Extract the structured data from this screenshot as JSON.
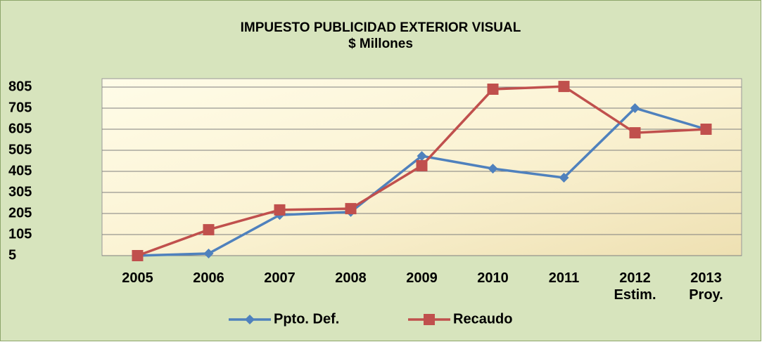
{
  "chart_data": {
    "type": "line",
    "title": "IMPUESTO PUBLICIDAD EXTERIOR VISUAL",
    "subtitle": "$ Millones",
    "categories": [
      "2005",
      "2006",
      "2007",
      "2008",
      "2009",
      "2010",
      "2011",
      "2012\nEstim.",
      "2013\nProy."
    ],
    "series": [
      {
        "name": "Ppto. Def.",
        "color": "#4f81bd",
        "marker": "diamond",
        "values": [
          5,
          15,
          198,
          212,
          478,
          418,
          375,
          705,
          605
        ]
      },
      {
        "name": "Recaudo",
        "color": "#c0504d",
        "marker": "square",
        "values": [
          5,
          128,
          222,
          228,
          432,
          795,
          808,
          588,
          605
        ]
      }
    ],
    "ylim": [
      5,
      845
    ],
    "yticks": [
      5,
      105,
      205,
      305,
      405,
      505,
      605,
      705,
      805
    ],
    "grid": true,
    "legend": "bottom"
  }
}
